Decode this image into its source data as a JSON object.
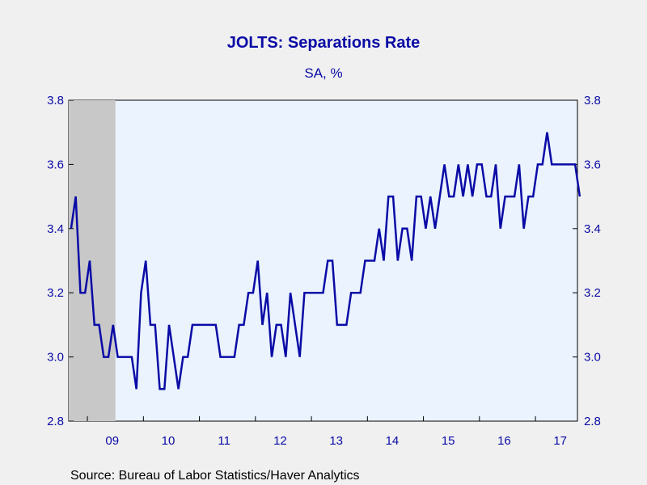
{
  "chart_data": {
    "type": "line",
    "title": "JOLTS: Separations Rate",
    "subtitle": "SA, %",
    "source": "Source:  Bureau of Labor Statistics/Haver Analytics",
    "ylim": [
      2.8,
      3.8
    ],
    "yticks": [
      "2.8",
      "3.0",
      "3.2",
      "3.4",
      "3.6",
      "3.8"
    ],
    "x_start": "2008-09",
    "x_end": "2017-09",
    "x_tick_labels": [
      "09",
      "10",
      "11",
      "12",
      "13",
      "14",
      "15",
      "16",
      "17"
    ],
    "recession_shading": {
      "start": "2008-09",
      "end": "2009-06"
    },
    "colors": {
      "line": "#0a0aa6",
      "plot_bg": "#eaf3fe",
      "recession": "#c8c8c8",
      "page_bg": "#f0f0f0",
      "text": "#0a0aa6"
    },
    "series": [
      {
        "values": [
          3.4,
          3.5,
          3.2,
          3.2,
          3.3,
          3.1,
          3.1,
          3.0,
          3.0,
          3.1,
          3.0,
          3.0,
          3.0,
          3.0,
          2.9,
          3.2,
          3.3,
          3.1,
          3.1,
          2.9,
          2.9,
          3.1,
          3.0,
          2.9,
          3.0,
          3.0,
          3.1,
          3.1,
          3.1,
          3.1,
          3.1,
          3.1,
          3.0,
          3.0,
          3.0,
          3.0,
          3.1,
          3.1,
          3.2,
          3.2,
          3.3,
          3.1,
          3.2,
          3.0,
          3.1,
          3.1,
          3.0,
          3.2,
          3.1,
          3.0,
          3.2,
          3.2,
          3.2,
          3.2,
          3.2,
          3.3,
          3.3,
          3.1,
          3.1,
          3.1,
          3.2,
          3.2,
          3.2,
          3.3,
          3.3,
          3.3,
          3.4,
          3.3,
          3.5,
          3.5,
          3.3,
          3.4,
          3.4,
          3.3,
          3.5,
          3.5,
          3.4,
          3.5,
          3.4,
          3.5,
          3.6,
          3.5,
          3.5,
          3.6,
          3.5,
          3.6,
          3.5,
          3.6,
          3.6,
          3.5,
          3.5,
          3.6,
          3.4,
          3.5,
          3.5,
          3.5,
          3.6,
          3.4,
          3.5,
          3.5,
          3.6,
          3.6,
          3.7,
          3.6,
          3.6,
          3.6,
          3.6,
          3.6,
          3.6,
          3.5
        ]
      }
    ]
  }
}
